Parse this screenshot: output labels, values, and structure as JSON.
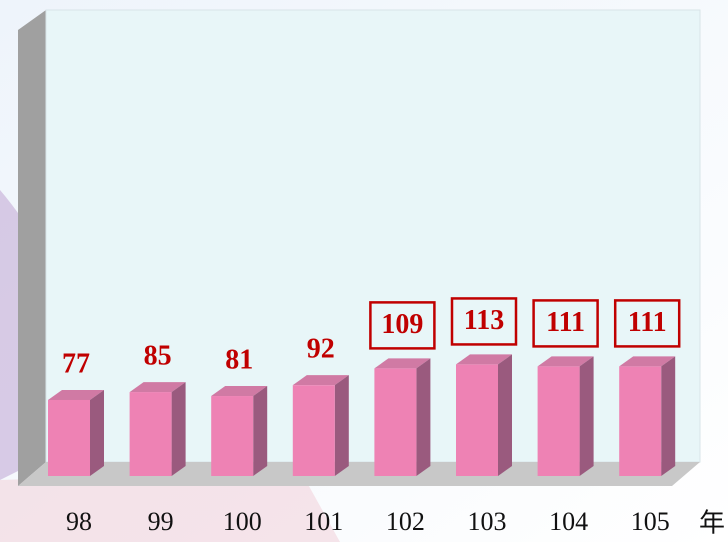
{
  "chart_data": {
    "type": "bar",
    "categories": [
      "98",
      "99",
      "100",
      "101",
      "102",
      "103",
      "104",
      "105"
    ],
    "values": [
      77,
      85,
      81,
      92,
      109,
      113,
      111,
      111
    ],
    "label_box": [
      false,
      false,
      false,
      false,
      true,
      true,
      true,
      true
    ],
    "x_label": "年",
    "color": "#ee82b4",
    "label_color": "#c00000",
    "ylim": [
      0,
      472
    ]
  }
}
